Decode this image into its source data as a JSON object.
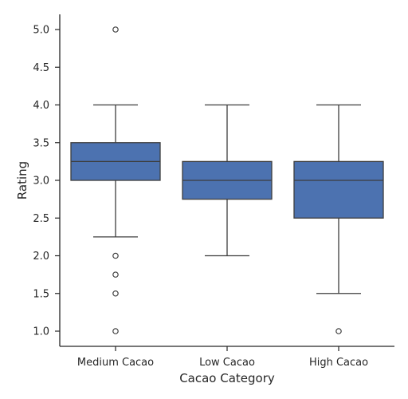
{
  "chart_data": {
    "type": "box",
    "xlabel": "Cacao Category",
    "ylabel": "Rating",
    "ylim": [
      0.8,
      5.2
    ],
    "y_ticks": [
      "1.0",
      "1.5",
      "2.0",
      "2.5",
      "3.0",
      "3.5",
      "4.0",
      "4.5",
      "5.0"
    ],
    "categories": [
      "Medium Cacao",
      "Low Cacao",
      "High Cacao"
    ],
    "boxes": [
      {
        "category": "Medium Cacao",
        "whisker_low": 2.25,
        "q1": 3.0,
        "median": 3.25,
        "q3": 3.5,
        "whisker_high": 4.0,
        "outliers": [
          5.0,
          2.0,
          1.75,
          1.5,
          1.0
        ]
      },
      {
        "category": "Low Cacao",
        "whisker_low": 2.0,
        "q1": 2.75,
        "median": 3.0,
        "q3": 3.25,
        "whisker_high": 4.0,
        "outliers": []
      },
      {
        "category": "High Cacao",
        "whisker_low": 1.5,
        "q1": 2.5,
        "median": 3.0,
        "q3": 3.25,
        "whisker_high": 4.0,
        "outliers": [
          1.0
        ]
      }
    ],
    "box_color": "#4c72b0",
    "line_color": "#3d3d3d",
    "grid": false
  }
}
